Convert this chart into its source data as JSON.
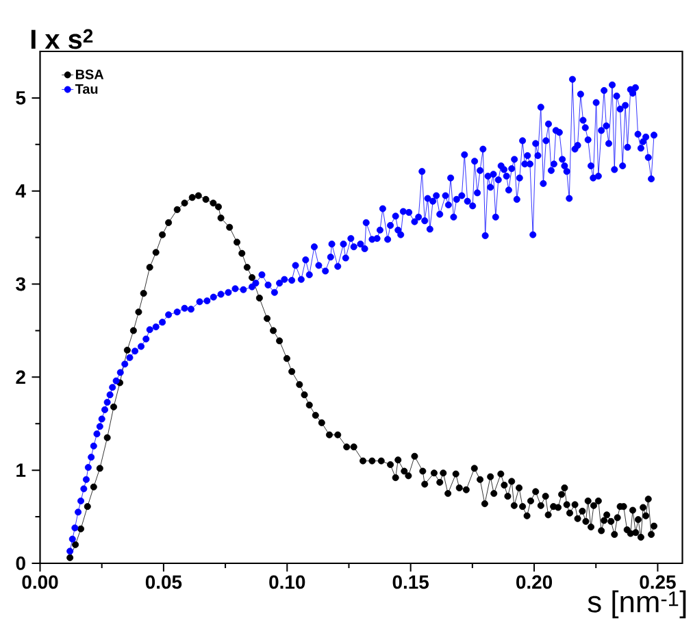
{
  "chart_data": {
    "type": "line",
    "xlabel": "s [nm$^{-1}$]",
    "ylabel": "I x s$^{2}$",
    "xlim": [
      0,
      0.26
    ],
    "ylim": [
      0,
      5.5
    ],
    "xticks": [
      {
        "value": 0,
        "label": "0.00"
      },
      {
        "value": 0.05,
        "label": "0.05"
      },
      {
        "value": 0.1,
        "label": "0.10"
      },
      {
        "value": 0.15,
        "label": "0.15"
      },
      {
        "value": 0.2,
        "label": "0.20"
      },
      {
        "value": 0.25,
        "label": "0.25"
      }
    ],
    "yticks": [
      0,
      1,
      2,
      3,
      4,
      5
    ],
    "legend": "top left",
    "marker": "circle",
    "line_style": "solid",
    "series": [
      {
        "name": "BSA",
        "color": "#000000",
        "x": [
          0.0121,
          0.0143,
          0.0165,
          0.0192,
          0.0217,
          0.0242,
          0.0272,
          0.0298,
          0.0323,
          0.0353,
          0.0378,
          0.0399,
          0.0419,
          0.0444,
          0.0469,
          0.0495,
          0.052,
          0.0555,
          0.0585,
          0.0616,
          0.0641,
          0.0671,
          0.0701,
          0.0722,
          0.0732,
          0.0767,
          0.0797,
          0.0817,
          0.0838,
          0.0858,
          0.0888,
          0.0919,
          0.0944,
          0.0969,
          0.0999,
          0.1019,
          0.105,
          0.107,
          0.109,
          0.1115,
          0.114,
          0.1171,
          0.1205,
          0.1241,
          0.127,
          0.1307,
          0.1344,
          0.1381,
          0.1418,
          0.1439,
          0.1449,
          0.1474,
          0.1491,
          0.1516,
          0.1549,
          0.1557,
          0.1595,
          0.1618,
          0.1632,
          0.1651,
          0.1683,
          0.1697,
          0.1725,
          0.1758,
          0.1781,
          0.18,
          0.1823,
          0.1837,
          0.1865,
          0.1879,
          0.1893,
          0.1909,
          0.1919,
          0.1939,
          0.1953,
          0.1971,
          0.1986,
          0.2006,
          0.2027,
          0.2046,
          0.2057,
          0.2078,
          0.2097,
          0.2111,
          0.2123,
          0.2132,
          0.2144,
          0.2165,
          0.2176,
          0.2195,
          0.2209,
          0.2218,
          0.223,
          0.2241,
          0.226,
          0.2272,
          0.2283,
          0.2294,
          0.2311,
          0.2325,
          0.2337,
          0.2348,
          0.2362,
          0.2376,
          0.239,
          0.2399,
          0.2411,
          0.2421,
          0.2432,
          0.2441,
          0.2452,
          0.2462,
          0.2474,
          0.2485
        ],
        "values": [
          0.06,
          0.2,
          0.37,
          0.61,
          0.82,
          1.02,
          1.35,
          1.68,
          1.94,
          2.29,
          2.5,
          2.7,
          2.9,
          3.18,
          3.34,
          3.53,
          3.66,
          3.8,
          3.87,
          3.93,
          3.95,
          3.91,
          3.87,
          3.83,
          3.71,
          3.61,
          3.45,
          3.33,
          3.18,
          3.07,
          2.85,
          2.63,
          2.5,
          2.39,
          2.2,
          2.06,
          1.92,
          1.81,
          1.7,
          1.59,
          1.51,
          1.38,
          1.38,
          1.25,
          1.25,
          1.1,
          1.1,
          1.1,
          1.06,
          0.92,
          1.11,
          0.99,
          0.94,
          1.15,
          0.99,
          0.85,
          0.97,
          0.87,
          0.97,
          0.75,
          0.96,
          0.81,
          0.79,
          1.02,
          0.9,
          0.64,
          0.93,
          0.75,
          0.96,
          0.84,
          0.72,
          0.88,
          0.62,
          0.81,
          0.61,
          0.51,
          0.67,
          0.77,
          0.62,
          0.72,
          0.52,
          0.61,
          0.6,
          0.74,
          0.81,
          0.63,
          0.54,
          0.63,
          0.48,
          0.56,
          0.45,
          0.67,
          0.39,
          0.62,
          0.67,
          0.35,
          0.46,
          0.52,
          0.45,
          0.31,
          0.49,
          0.61,
          0.61,
          0.36,
          0.32,
          0.57,
          0.33,
          0.47,
          0.28,
          0.6,
          0.51,
          0.69,
          0.31,
          0.4
        ]
      },
      {
        "name": "Tau",
        "color": "#0000ff",
        "x": [
          0.0121,
          0.0131,
          0.0141,
          0.0154,
          0.0165,
          0.0177,
          0.0187,
          0.0195,
          0.0207,
          0.0217,
          0.023,
          0.0242,
          0.025,
          0.0262,
          0.0272,
          0.0283,
          0.0293,
          0.0308,
          0.0325,
          0.0343,
          0.0363,
          0.0384,
          0.0409,
          0.0429,
          0.0444,
          0.0469,
          0.0495,
          0.052,
          0.0555,
          0.0585,
          0.0611,
          0.0646,
          0.0676,
          0.0702,
          0.0732,
          0.0762,
          0.079,
          0.0823,
          0.0858,
          0.0873,
          0.0898,
          0.0923,
          0.0949,
          0.0969,
          0.0989,
          0.1019,
          0.1034,
          0.1057,
          0.1075,
          0.109,
          0.111,
          0.1128,
          0.1155,
          0.1176,
          0.1181,
          0.1205,
          0.1228,
          0.1237,
          0.1258,
          0.127,
          0.1297,
          0.1314,
          0.132,
          0.1344,
          0.1364,
          0.1376,
          0.1387,
          0.1407,
          0.1418,
          0.1439,
          0.1449,
          0.146,
          0.147,
          0.1493,
          0.1516,
          0.1532,
          0.1546,
          0.1557,
          0.1569,
          0.1578,
          0.159,
          0.1604,
          0.1618,
          0.1641,
          0.1653,
          0.1662,
          0.1674,
          0.1686,
          0.1707,
          0.1718,
          0.173,
          0.1751,
          0.1759,
          0.177,
          0.1781,
          0.1793,
          0.1802,
          0.1813,
          0.1823,
          0.1835,
          0.1844,
          0.1855,
          0.1866,
          0.1878,
          0.1888,
          0.1897,
          0.1909,
          0.192,
          0.193,
          0.1941,
          0.1953,
          0.1962,
          0.1973,
          0.1983,
          0.1995,
          0.2006,
          0.2015,
          0.2027,
          0.2037,
          0.2048,
          0.2058,
          0.2069,
          0.208,
          0.2088,
          0.2102,
          0.2114,
          0.2123,
          0.2132,
          0.2142,
          0.2155,
          0.2165,
          0.2176,
          0.2188,
          0.2198,
          0.2207,
          0.2218,
          0.223,
          0.2239,
          0.2251,
          0.226,
          0.2272,
          0.2283,
          0.2292,
          0.2302,
          0.2316,
          0.2325,
          0.2334,
          0.2348,
          0.2358,
          0.2369,
          0.2378,
          0.239,
          0.2399,
          0.241,
          0.242,
          0.2432,
          0.2441,
          0.2452,
          0.2462,
          0.2474,
          0.2485
        ],
        "values": [
          0.13,
          0.26,
          0.38,
          0.55,
          0.67,
          0.8,
          0.9,
          1.03,
          1.14,
          1.26,
          1.39,
          1.47,
          1.55,
          1.65,
          1.73,
          1.81,
          1.89,
          1.96,
          2.05,
          2.14,
          2.21,
          2.28,
          2.33,
          2.41,
          2.51,
          2.54,
          2.59,
          2.67,
          2.7,
          2.74,
          2.73,
          2.81,
          2.82,
          2.86,
          2.89,
          2.91,
          2.95,
          2.94,
          2.97,
          3.01,
          3.1,
          2.99,
          2.91,
          3.01,
          3.05,
          3.04,
          3.2,
          3.05,
          3.26,
          3.1,
          3.4,
          3.2,
          3.14,
          3.29,
          3.43,
          3.19,
          3.43,
          3.28,
          3.49,
          3.4,
          3.43,
          3.38,
          3.66,
          3.48,
          3.49,
          3.58,
          3.81,
          3.48,
          3.63,
          3.73,
          3.58,
          3.53,
          3.78,
          3.77,
          3.67,
          3.72,
          4.21,
          3.68,
          3.92,
          3.59,
          3.89,
          3.95,
          3.75,
          3.95,
          3.85,
          4.14,
          3.72,
          3.91,
          3.95,
          4.39,
          3.89,
          3.84,
          4.32,
          3.98,
          4.22,
          4.45,
          3.52,
          4.16,
          4.04,
          4.18,
          3.72,
          4.12,
          4.27,
          4.23,
          4.16,
          4.01,
          4.24,
          4.34,
          3.91,
          4.14,
          4.54,
          4.29,
          4.38,
          4.29,
          3.53,
          4.51,
          4.38,
          4.9,
          4.08,
          4.54,
          4.72,
          4.22,
          4.29,
          4.65,
          4.63,
          4.34,
          4.27,
          4.21,
          3.92,
          5.2,
          4.45,
          4.49,
          5.04,
          4.76,
          4.68,
          4.55,
          4.27,
          4.14,
          4.95,
          4.16,
          4.65,
          5.08,
          4.7,
          4.51,
          5.14,
          4.23,
          5.02,
          4.88,
          4.27,
          4.92,
          4.47,
          5.09,
          5.05,
          5.11,
          4.61,
          4.46,
          4.53,
          4.58,
          4.36,
          4.13,
          4.6
        ]
      }
    ]
  }
}
